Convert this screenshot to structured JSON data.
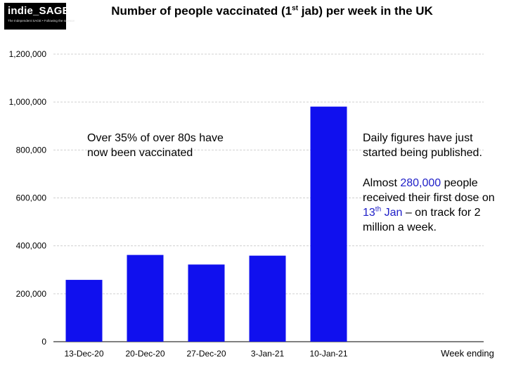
{
  "logo": {
    "name": "indie_SAGE",
    "tagline": "The Independent SAGE • Following the science"
  },
  "title": {
    "pre": "Number of people vaccinated (1",
    "sup": "st",
    "post": " jab) per week in the UK"
  },
  "annotations": {
    "left": {
      "line1": "Over 35% of over 80s have",
      "line2": "now been vaccinated"
    },
    "right": {
      "p1_line1": "Daily figures have just",
      "p1_line2": "started being published.",
      "p2_a": "Almost ",
      "p2_num": "280,000",
      "p2_b": " people",
      "p2_line2": "received their first dose on",
      "p2_date": "13",
      "p2_date_sup": "th",
      "p2_date_month": " Jan",
      "p2_c": " – on track for 2",
      "p2_line4": "million a week."
    }
  },
  "chart_data": {
    "type": "bar",
    "title": "Number of people vaccinated (1st jab) per week in the UK",
    "xlabel": "Week ending",
    "ylabel": "",
    "categories": [
      "13-Dec-20",
      "20-Dec-20",
      "27-Dec-20",
      "3-Jan-21",
      "10-Jan-21"
    ],
    "values": [
      258000,
      362000,
      322000,
      359000,
      981000
    ],
    "ylim": [
      0,
      1200000
    ],
    "yticks": [
      0,
      200000,
      400000,
      600000,
      800000,
      1000000,
      1200000
    ],
    "ytick_labels": [
      "0",
      "200,000",
      "400,000",
      "600,000",
      "800,000",
      "1,000,000",
      "1,200,000"
    ],
    "grid": true,
    "bar_color": "#1010ee"
  }
}
